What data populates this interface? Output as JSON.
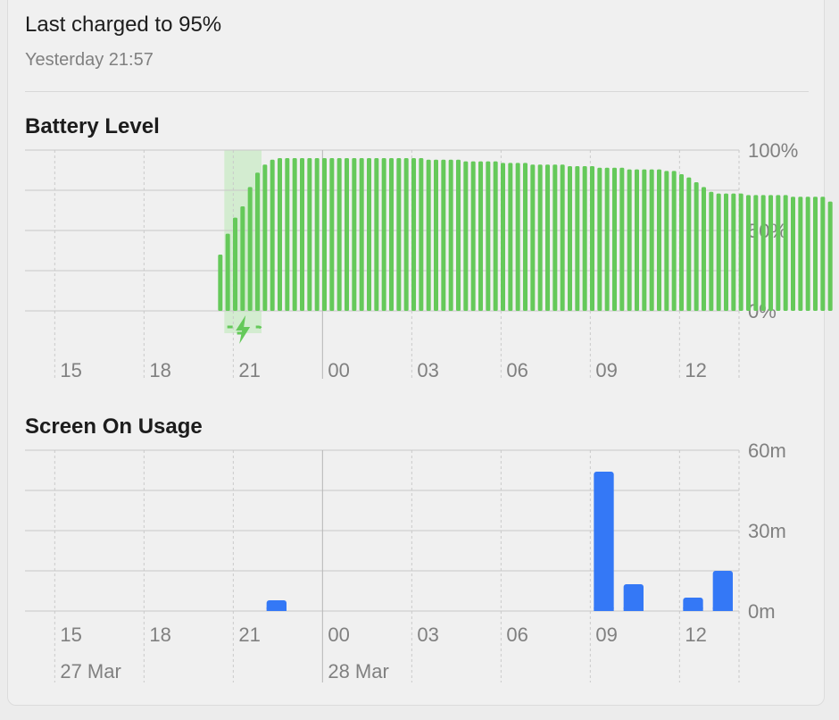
{
  "header": {
    "title": "Last charged to 95%",
    "subtitle": "Yesterday 21:57"
  },
  "battery_section": {
    "title": "Battery Level"
  },
  "screen_section": {
    "title": "Screen On Usage"
  },
  "colors": {
    "battery_bar": "#65c95a",
    "charging_highlight": "#d3ecd0",
    "usage_bar": "#3478f6",
    "grid": "#c9c9c9",
    "axis_text": "#808080"
  },
  "charging_icon": "lightning-bolt-icon",
  "chart_data": [
    {
      "type": "bar",
      "title": "Battery Level",
      "x_ticks": [
        "15",
        "18",
        "21",
        "00",
        "03",
        "06",
        "09",
        "12"
      ],
      "y_ticks": [
        "100%",
        "50%",
        "0%"
      ],
      "ylim": [
        0,
        100
      ],
      "grid": true,
      "charging_window": {
        "start_hour": 20.7,
        "end_hour": 21.95
      },
      "start_hour": 20.55,
      "bar_interval_hours": 0.25,
      "values": [
        35,
        48,
        58,
        65,
        77,
        86,
        91,
        94,
        95,
        95,
        95,
        95,
        95,
        95,
        95,
        95,
        95,
        95,
        95,
        95,
        95,
        95,
        95,
        95,
        95,
        95,
        95,
        95,
        94,
        94,
        94,
        94,
        94,
        93,
        93,
        93,
        93,
        93,
        92,
        92,
        92,
        92,
        91,
        91,
        91,
        91,
        91,
        90,
        90,
        90,
        90,
        89,
        89,
        89,
        89,
        88,
        88,
        88,
        88,
        88,
        87,
        87,
        85,
        83,
        80,
        77,
        74,
        73,
        73,
        73,
        73,
        72,
        72,
        72,
        72,
        72,
        72,
        71,
        71,
        71,
        71,
        71,
        68
      ]
    },
    {
      "type": "bar",
      "title": "Screen On Usage",
      "x_ticks": [
        "15",
        "18",
        "21",
        "00",
        "03",
        "06",
        "09",
        "12"
      ],
      "date_labels": [
        {
          "label": "27 Mar",
          "at_tick": "15"
        },
        {
          "label": "28 Mar",
          "at_tick": "00"
        }
      ],
      "y_ticks": [
        "60m",
        "30m",
        "0m"
      ],
      "ylim": [
        0,
        60
      ],
      "grid": true,
      "bar_interval_hours": 1,
      "series": [
        {
          "hour": 22,
          "minutes": 4
        },
        {
          "hour": 9,
          "minutes": 52
        },
        {
          "hour": 10,
          "minutes": 10
        },
        {
          "hour": 12,
          "minutes": 5
        },
        {
          "hour": 13,
          "minutes": 15
        }
      ]
    }
  ]
}
